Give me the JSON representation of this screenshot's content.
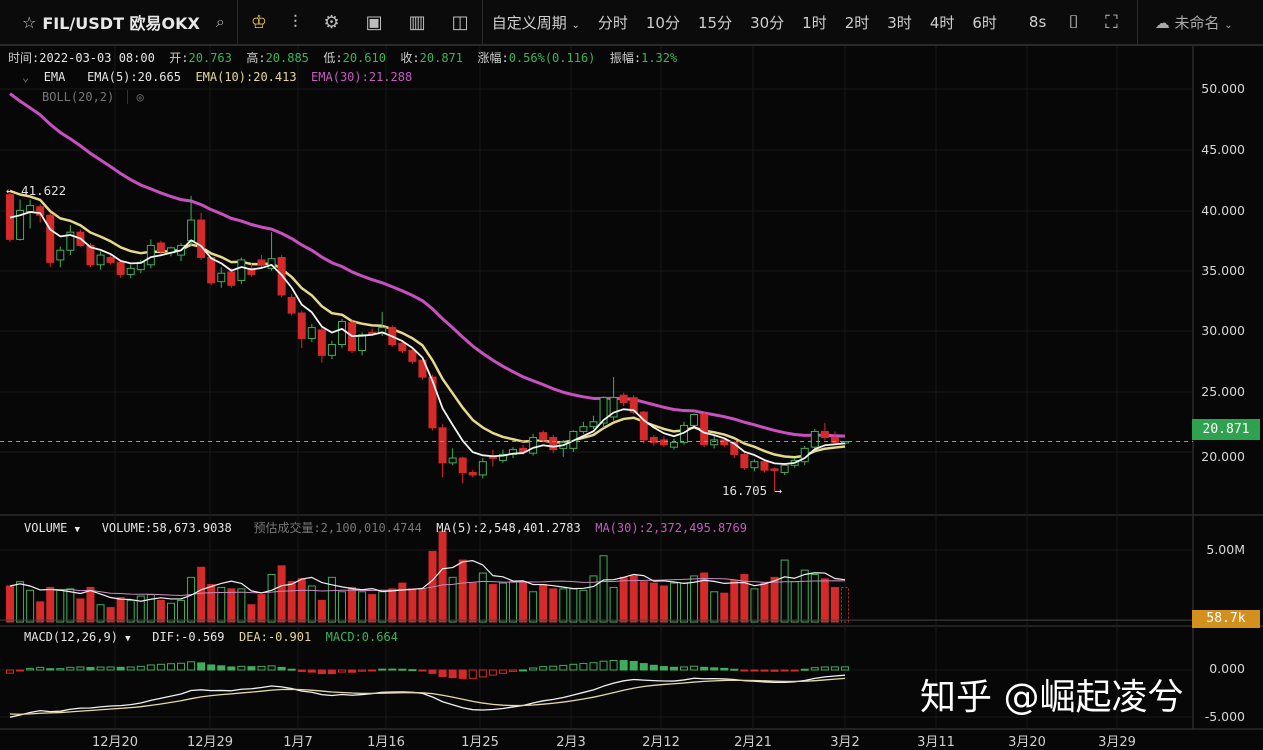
{
  "toolbar": {
    "symbol": "FIL/USDT 欧易OKX",
    "custom_period": "自定义周期",
    "intervals": [
      "分时",
      "10分",
      "15分",
      "30分",
      "1时",
      "2时",
      "3时",
      "4时",
      "6时"
    ],
    "refresh": "8s",
    "layout_name": "未命名",
    "icons": [
      "star-icon",
      "search-icon",
      "crown-icon",
      "indicator-icon",
      "settings-icon",
      "chart-template-icon",
      "panel-icon",
      "layout-icon",
      "camera-icon",
      "fullscreen-icon",
      "cloud-check-icon"
    ]
  },
  "ohlc_bar": {
    "time_label": "时间:",
    "time": "2022-03-03 08:00",
    "open_label": "开:",
    "open": "20.763",
    "high_label": "高:",
    "high": "20.885",
    "low_label": "低:",
    "low": "20.610",
    "close_label": "收:",
    "close": "20.871",
    "change_label": "涨幅:",
    "change": "0.56%(0.116)",
    "amplitude_label": "振幅:",
    "amplitude": "1.32%"
  },
  "ema": {
    "name": "EMA",
    "ema5": "EMA(5):20.665",
    "ema10": "EMA(10):20.413",
    "ema30": "EMA(30):21.288"
  },
  "boll": {
    "name": "BOLL(20,2)"
  },
  "volume_header": {
    "name": "VOLUME",
    "volume": "VOLUME:58,673.9038",
    "estimated": "预估成交量:2,100,010.4744",
    "ma5": "MA(5):2,548,401.2783",
    "ma30": "MA(30):2,372,495.8769"
  },
  "macd_header": {
    "name": "MACD(12,26,9)",
    "dif": "DIF:-0.569",
    "dea": "DEA:-0.901",
    "macd": "MACD:0.664"
  },
  "price_axis": [
    "50.000",
    "45.000",
    "40.000",
    "35.000",
    "30.000",
    "25.000",
    "20.000"
  ],
  "volume_axis": "5.00M",
  "macd_axis": [
    "0.000",
    "-5.000"
  ],
  "x_axis": [
    "12月20",
    "12月29",
    "1月7",
    "1月16",
    "1月25",
    "2月3",
    "2月12",
    "2月21",
    "3月2",
    "3月11",
    "3月20",
    "3月29"
  ],
  "last_price": "20.871",
  "last_volume": "58.7k",
  "max_marker": "← 41.622",
  "min_marker": "16.705 →",
  "watermark": "知乎 @崛起凌兮",
  "colors": {
    "up": "#3fae5c",
    "down": "#d42a2a",
    "ema5": "#f2f2f2",
    "ema10": "#e6d98a",
    "ema30": "#c850c0",
    "last_price_tag": "#2ea24f",
    "volume_tag": "#d4901d"
  },
  "chart_data": {
    "type": "candlestick",
    "price_range": [
      15,
      53
    ],
    "candles_ohlc": [
      [
        41.3,
        41.622,
        37.4,
        37.6
      ],
      [
        37.6,
        40.9,
        37.5,
        40.0
      ],
      [
        39.9,
        40.9,
        38.5,
        40.4
      ],
      [
        40.3,
        40.5,
        39.0,
        39.6
      ],
      [
        39.6,
        39.8,
        35.3,
        35.7
      ],
      [
        35.9,
        37.0,
        35.3,
        36.7
      ],
      [
        36.7,
        38.8,
        36.3,
        38.2
      ],
      [
        38.2,
        38.4,
        37.0,
        37.1
      ],
      [
        37.1,
        37.3,
        35.3,
        35.5
      ],
      [
        35.5,
        36.6,
        35.1,
        36.3
      ],
      [
        36.1,
        36.3,
        35.5,
        35.7
      ],
      [
        35.7,
        35.9,
        34.4,
        34.7
      ],
      [
        34.7,
        35.5,
        34.4,
        35.2
      ],
      [
        35.1,
        35.9,
        34.8,
        35.7
      ],
      [
        35.5,
        37.6,
        35.2,
        37.1
      ],
      [
        37.3,
        37.5,
        36.3,
        36.6
      ],
      [
        36.5,
        37.0,
        36.2,
        36.9
      ],
      [
        36.3,
        37.3,
        35.8,
        37.1
      ],
      [
        37.5,
        41.2,
        37.0,
        39.2
      ],
      [
        39.2,
        39.8,
        35.9,
        36.1
      ],
      [
        36.1,
        36.2,
        33.8,
        34.0
      ],
      [
        34.1,
        35.3,
        33.6,
        34.8
      ],
      [
        34.9,
        35.2,
        33.6,
        33.8
      ],
      [
        34.2,
        36.1,
        33.9,
        35.9
      ],
      [
        35.2,
        35.6,
        34.5,
        34.7
      ],
      [
        35.9,
        36.3,
        35.3,
        35.5
      ],
      [
        35.2,
        38.2,
        35.0,
        36.0
      ],
      [
        36.1,
        36.3,
        32.8,
        33.0
      ],
      [
        32.8,
        33.1,
        31.3,
        31.5
      ],
      [
        31.5,
        31.7,
        28.6,
        29.4
      ],
      [
        29.4,
        30.6,
        29.1,
        30.3
      ],
      [
        30.1,
        30.3,
        27.4,
        28.0
      ],
      [
        28.0,
        29.2,
        27.7,
        28.9
      ],
      [
        28.9,
        31.0,
        28.6,
        30.8
      ],
      [
        30.7,
        30.9,
        28.2,
        28.4
      ],
      [
        28.4,
        29.9,
        28.0,
        29.7
      ],
      [
        29.9,
        30.2,
        29.6,
        29.85
      ],
      [
        29.9,
        31.6,
        29.6,
        30.3
      ],
      [
        30.3,
        30.5,
        28.7,
        28.9
      ],
      [
        29.0,
        29.2,
        28.2,
        28.4
      ],
      [
        28.4,
        28.6,
        27.3,
        27.5
      ],
      [
        27.6,
        27.8,
        26.0,
        26.2
      ],
      [
        26.2,
        26.4,
        21.8,
        22.0
      ],
      [
        22.0,
        22.3,
        17.9,
        19.1
      ],
      [
        19.1,
        20.3,
        18.9,
        19.5
      ],
      [
        19.5,
        19.6,
        17.4,
        18.3
      ],
      [
        18.3,
        18.5,
        17.9,
        18.1
      ],
      [
        18.1,
        19.5,
        17.8,
        19.2
      ],
      [
        19.6,
        20.2,
        18.8,
        19.5
      ],
      [
        19.3,
        20.2,
        19.1,
        19.8
      ],
      [
        19.8,
        20.4,
        19.5,
        20.2
      ],
      [
        20.3,
        20.6,
        19.8,
        20.0
      ],
      [
        19.9,
        21.5,
        19.7,
        21.2
      ],
      [
        21.6,
        21.8,
        20.8,
        21.0
      ],
      [
        21.2,
        21.4,
        19.9,
        20.2
      ],
      [
        20.3,
        21.0,
        19.6,
        20.8
      ],
      [
        20.3,
        21.8,
        20.0,
        21.7
      ],
      [
        21.7,
        22.5,
        21.5,
        22.1
      ],
      [
        22.1,
        23.0,
        21.9,
        22.5
      ],
      [
        22.4,
        24.6,
        22.0,
        24.5
      ],
      [
        22.9,
        26.2,
        22.6,
        24.5
      ],
      [
        24.7,
        24.9,
        23.8,
        24.1
      ],
      [
        24.5,
        24.7,
        23.1,
        23.3
      ],
      [
        23.3,
        23.4,
        20.7,
        21.0
      ],
      [
        21.2,
        21.4,
        20.5,
        20.8
      ],
      [
        21.0,
        21.3,
        20.4,
        20.6
      ],
      [
        20.4,
        21.1,
        20.2,
        20.8
      ],
      [
        20.8,
        22.5,
        20.6,
        22.2
      ],
      [
        22.2,
        23.2,
        21.9,
        23.1
      ],
      [
        23.1,
        23.3,
        20.4,
        20.6
      ],
      [
        20.6,
        21.4,
        20.3,
        21.0
      ],
      [
        21.0,
        21.2,
        20.4,
        20.6
      ],
      [
        20.8,
        20.9,
        19.5,
        19.8
      ],
      [
        19.8,
        20.0,
        18.5,
        18.7
      ],
      [
        18.7,
        19.4,
        18.4,
        19.2
      ],
      [
        19.2,
        19.4,
        18.3,
        18.5
      ],
      [
        18.6,
        18.7,
        16.705,
        18.5
      ],
      [
        18.3,
        19.1,
        18.1,
        18.9
      ],
      [
        18.9,
        19.5,
        18.7,
        19.3
      ],
      [
        19.2,
        20.5,
        18.9,
        20.3
      ],
      [
        20.4,
        21.9,
        20.2,
        21.7
      ],
      [
        21.7,
        22.4,
        21.0,
        21.2
      ],
      [
        21.2,
        21.7,
        20.6,
        20.8
      ],
      [
        20.763,
        20.885,
        20.61,
        20.871
      ]
    ],
    "volume_millions": [
      2.5,
      2.8,
      2.2,
      1.4,
      2.4,
      2.2,
      2.3,
      1.6,
      2.4,
      1.2,
      1.0,
      1.7,
      1.5,
      1.8,
      1.9,
      1.5,
      1.3,
      1.5,
      3.1,
      3.8,
      2.6,
      2.4,
      2.3,
      2.3,
      1.2,
      1.9,
      3.3,
      3.9,
      2.8,
      3.0,
      2.5,
      1.5,
      3.1,
      2.1,
      2.4,
      2.1,
      1.9,
      2.1,
      2.3,
      2.7,
      2.3,
      2.3,
      4.9,
      6.3,
      3.1,
      4.3,
      2.7,
      3.4,
      2.6,
      2.7,
      2.8,
      2.8,
      2.1,
      2.6,
      2.3,
      2.3,
      2.3,
      2.2,
      3.2,
      4.6,
      2.4,
      3.1,
      3.2,
      2.8,
      2.7,
      2.5,
      2.7,
      2.7,
      3.2,
      3.4,
      2.1,
      2.0,
      2.9,
      3.3,
      2.3,
      2.7,
      3.1,
      4.3,
      2.8,
      3.6,
      3.3,
      3.0,
      2.4,
      0.0587
    ]
  }
}
